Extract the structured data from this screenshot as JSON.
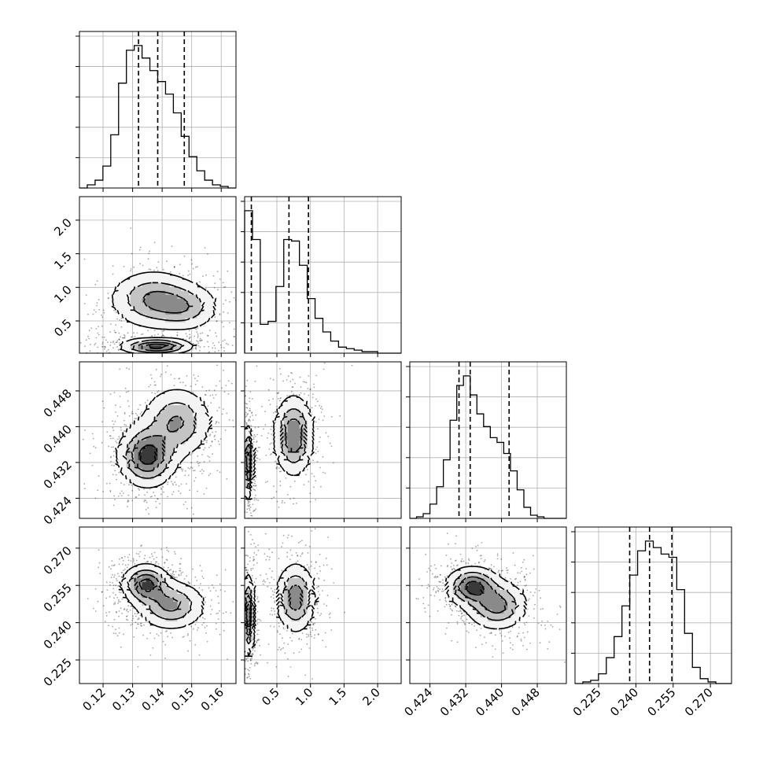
{
  "chart_data": {
    "type": "corner",
    "title": "",
    "grid": true,
    "parameters": [
      {
        "xlim": [
          0.112,
          0.165
        ],
        "ticks": [
          0.12,
          0.13,
          0.14,
          0.15,
          0.16
        ],
        "tick_labels": [
          "0.12",
          "0.13",
          "0.14",
          "0.15",
          "0.16"
        ],
        "quantiles": [
          0.132,
          0.1385,
          0.1475
        ],
        "hist_edges": [
          0.112,
          0.11465,
          0.1173,
          0.11995,
          0.1226,
          0.12525,
          0.1279,
          0.13055,
          0.1332,
          0.13585,
          0.1385,
          0.14115,
          0.1438,
          0.14645,
          0.1491,
          0.15175,
          0.1544,
          0.15705,
          0.1597,
          0.16235,
          0.165
        ],
        "hist_counts": [
          0,
          2,
          5,
          14,
          34,
          67,
          88,
          91,
          83,
          75,
          68,
          60,
          48,
          33,
          20,
          11,
          5,
          2,
          1,
          0
        ]
      },
      {
        "xlim": [
          0.02,
          2.35
        ],
        "ticks": [
          0.5,
          1.0,
          1.5,
          2.0
        ],
        "tick_labels": [
          "0.5",
          "1.0",
          "1.5",
          "2.0"
        ],
        "quantiles": [
          0.12,
          0.68,
          0.97
        ],
        "hist_edges": [
          0.02,
          0.1365,
          0.253,
          0.3695,
          0.486,
          0.6025,
          0.719,
          0.8355,
          0.952,
          1.0685,
          1.185,
          1.3015,
          1.418,
          1.5345,
          1.651,
          1.7675,
          1.884,
          2.0005,
          2.117,
          2.2335,
          2.35
        ],
        "hist_counts": [
          94,
          75,
          19,
          21,
          44,
          75,
          74,
          58,
          36,
          23,
          14,
          8,
          4,
          3,
          2,
          1,
          1,
          0,
          0,
          0
        ],
        "tick_labels_left": [
          "0.5",
          "1.0",
          "1.5",
          "2.0"
        ]
      },
      {
        "xlim": [
          0.4195,
          0.4545
        ],
        "ticks": [
          0.424,
          0.432,
          0.44,
          0.448
        ],
        "tick_labels": [
          "0.424",
          "0.432",
          "0.440",
          "0.448"
        ],
        "quantiles": [
          0.4305,
          0.433,
          0.4417
        ],
        "hist_edges": [
          0.4195,
          0.421,
          0.4225,
          0.424,
          0.4255,
          0.427,
          0.4285,
          0.43,
          0.4315,
          0.433,
          0.4345,
          0.436,
          0.4375,
          0.439,
          0.4405,
          0.442,
          0.4435,
          0.445,
          0.4465,
          0.448,
          0.4495,
          0.4545
        ],
        "hist_counts": [
          0,
          1,
          3,
          9,
          20,
          37,
          62,
          84,
          90,
          78,
          66,
          58,
          51,
          48,
          41,
          30,
          18,
          7,
          2,
          1,
          0
        ]
      },
      {
        "xlim": [
          0.2155,
          0.2785
        ],
        "ticks": [
          0.225,
          0.24,
          0.255,
          0.27
        ],
        "tick_labels": [
          "0.225",
          "0.240",
          "0.255",
          "0.270"
        ],
        "quantiles": [
          0.2375,
          0.2455,
          0.2545
        ],
        "hist_edges": [
          0.2155,
          0.21865,
          0.2218,
          0.22495,
          0.2281,
          0.23125,
          0.2344,
          0.23755,
          0.2407,
          0.24385,
          0.247,
          0.25015,
          0.2533,
          0.25645,
          0.2596,
          0.26275,
          0.2659,
          0.26905,
          0.2722,
          0.27535,
          0.2785
        ],
        "hist_counts": [
          0,
          1,
          2,
          6,
          16,
          29,
          48,
          67,
          82,
          88,
          84,
          80,
          78,
          58,
          31,
          10,
          3,
          1,
          0,
          0
        ]
      }
    ],
    "pair_blobs": {
      "1-0": [
        {
          "cx": 0.137,
          "cy": 0.82,
          "sx": 0.0075,
          "sy": 0.22,
          "w": 1.0
        },
        {
          "cx": 0.148,
          "cy": 0.7,
          "sx": 0.006,
          "sy": 0.18,
          "w": 0.7
        },
        {
          "cx": 0.138,
          "cy": 0.12,
          "sx": 0.006,
          "sy": 0.06,
          "w": 1.6
        }
      ],
      "2-0": [
        {
          "cx": 0.135,
          "cy": 0.4335,
          "sx": 0.005,
          "sy": 0.0035,
          "w": 1.4
        },
        {
          "cx": 0.145,
          "cy": 0.441,
          "sx": 0.006,
          "sy": 0.004,
          "w": 0.9
        }
      ],
      "2-1": [
        {
          "cx": 0.06,
          "cy": 0.432,
          "sx": 0.04,
          "sy": 0.004,
          "w": 1.3
        },
        {
          "cx": 0.75,
          "cy": 0.438,
          "sx": 0.15,
          "sy": 0.0045,
          "w": 1.0
        }
      ],
      "3-0": [
        {
          "cx": 0.1345,
          "cy": 0.2555,
          "sx": 0.004,
          "sy": 0.004,
          "w": 1.4
        },
        {
          "cx": 0.143,
          "cy": 0.247,
          "sx": 0.006,
          "sy": 0.005,
          "w": 1.0
        }
      ],
      "3-1": [
        {
          "cx": 0.07,
          "cy": 0.243,
          "sx": 0.05,
          "sy": 0.008,
          "w": 1.3
        },
        {
          "cx": 0.78,
          "cy": 0.25,
          "sx": 0.15,
          "sy": 0.007,
          "w": 1.0
        }
      ],
      "3-2": [
        {
          "cx": 0.4335,
          "cy": 0.2545,
          "sx": 0.003,
          "sy": 0.004,
          "w": 1.3
        },
        {
          "cx": 0.439,
          "cy": 0.247,
          "sx": 0.0035,
          "sy": 0.005,
          "w": 1.0
        }
      ]
    }
  }
}
